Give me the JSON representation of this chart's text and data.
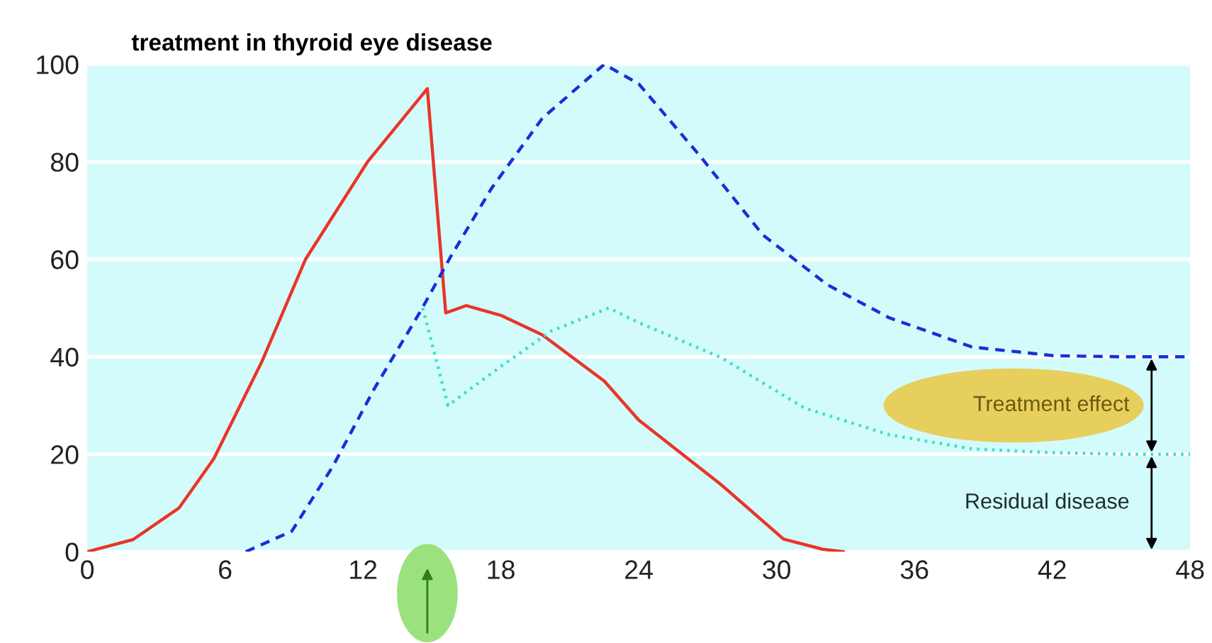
{
  "chart_data": {
    "type": "line",
    "title": "treatment in thyroid eye disease",
    "xlim": [
      0,
      48
    ],
    "xticks": [
      0,
      6,
      12,
      18,
      24,
      30,
      36,
      42,
      48
    ],
    "ylim": [
      0,
      100
    ],
    "yticks": [
      0,
      20,
      40,
      60,
      80,
      100
    ],
    "grid": "y",
    "series": [
      {
        "color": "#e8352a",
        "line_style": "solid",
        "x": [
          0,
          2,
          4,
          5.5,
          7.6,
          9.5,
          12.2,
          14.8,
          15.6,
          16.5,
          18,
          19.8,
          22.5,
          24,
          27.6,
          30.3,
          32,
          32.9
        ],
        "values": [
          0,
          2.5,
          9,
          19,
          39,
          60,
          80,
          95,
          49,
          50.5,
          48.5,
          44.5,
          35,
          27,
          13.7,
          2.6,
          0.5,
          0
        ]
      },
      {
        "color": "#1a2fd6",
        "line_style": "dashed",
        "x": [
          6.9,
          8.9,
          10.7,
          12.5,
          14.5,
          15.8,
          17.6,
          19.8,
          22.5,
          24,
          26.7,
          29.4,
          32.2,
          34.9,
          38.5,
          42.1,
          45,
          48
        ],
        "values": [
          0,
          4.2,
          17.6,
          33.5,
          49.3,
          60.4,
          74.6,
          88.9,
          100,
          96,
          81,
          65,
          54.8,
          48,
          42,
          40.2,
          40,
          40
        ]
      },
      {
        "color": "#3de0c0",
        "line_style": "dotted",
        "x": [
          14.6,
          15.7,
          18,
          20.2,
          22.7,
          24,
          27.6,
          31.2,
          34.9,
          38.5,
          42.1,
          45,
          48
        ],
        "values": [
          50,
          30,
          38,
          45.3,
          50,
          47,
          39.8,
          29.5,
          24,
          21.1,
          20.3,
          20,
          20
        ]
      }
    ],
    "annotations": [
      "Treatment effect",
      "Residual disease"
    ]
  }
}
